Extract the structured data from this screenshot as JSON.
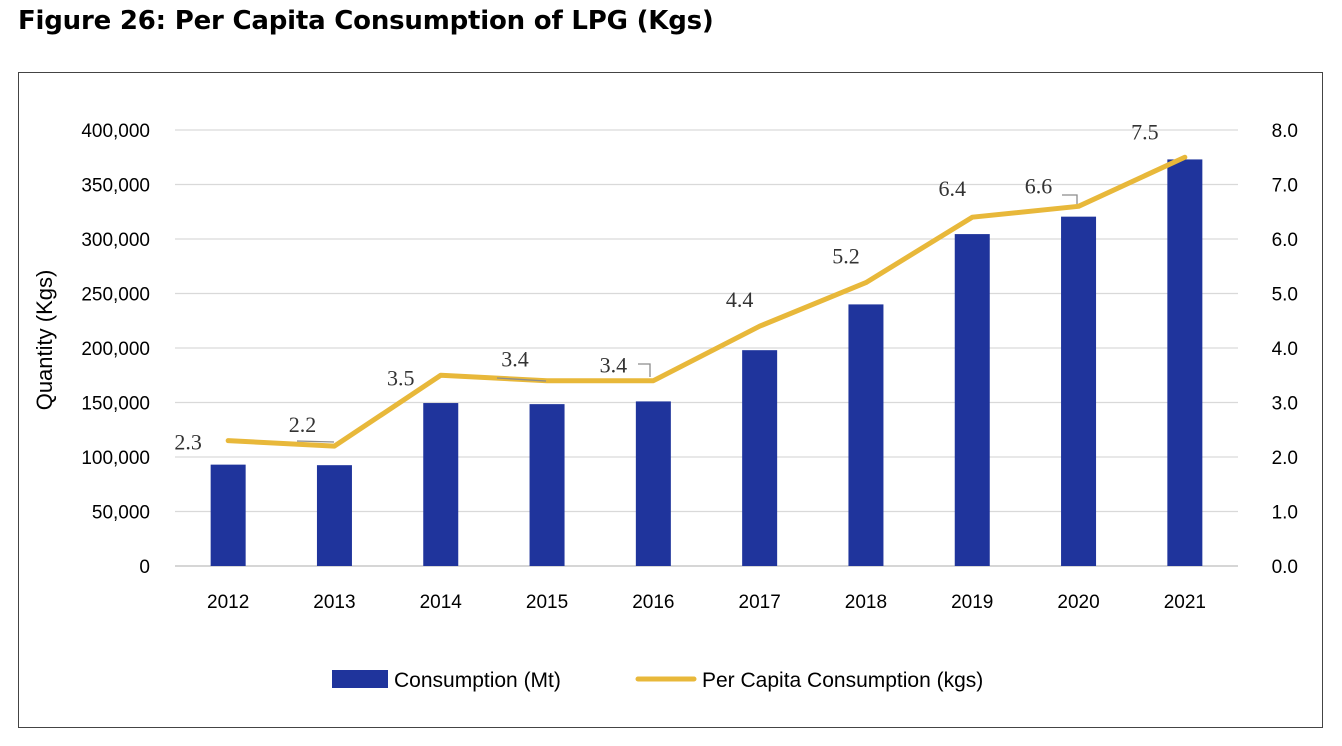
{
  "figure": {
    "title": "Figure 26: Per Capita Consumption of LPG (Kgs)"
  },
  "chart_data": {
    "type": "bar+line",
    "title": "Figure 26: Per Capita Consumption of LPG (Kgs)",
    "categories": [
      "2012",
      "2013",
      "2014",
      "2015",
      "2016",
      "2017",
      "2018",
      "2019",
      "2020",
      "2021"
    ],
    "series": [
      {
        "name": "Consumption (Mt)",
        "type": "bar",
        "axis": "left",
        "color": "#1f349c",
        "values": [
          93000,
          92500,
          149500,
          148500,
          151000,
          198000,
          240000,
          304500,
          320500,
          373000
        ]
      },
      {
        "name": "Per Capita Consumption (kgs)",
        "type": "line",
        "axis": "right",
        "color": "#e8b83a",
        "values": [
          2.3,
          2.2,
          3.5,
          3.4,
          3.4,
          4.4,
          5.2,
          6.4,
          6.6,
          7.5
        ],
        "labels": [
          "2.3",
          "2.2",
          "3.5",
          "3.4",
          "3.4",
          "4.4",
          "5.2",
          "6.4",
          "6.6",
          "7.5"
        ]
      }
    ],
    "ylabel": "Quantity (Kgs)",
    "ylim": [
      0,
      400000
    ],
    "yticks": [
      0,
      50000,
      100000,
      150000,
      200000,
      250000,
      300000,
      350000,
      400000
    ],
    "ytick_labels": [
      "0",
      "50,000",
      "100,000",
      "150,000",
      "200,000",
      "250,000",
      "300,000",
      "350,000",
      "400,000"
    ],
    "y2lim": [
      0,
      8
    ],
    "y2ticks": [
      0,
      1,
      2,
      3,
      4,
      5,
      6,
      7,
      8
    ],
    "y2tick_labels": [
      "0.0",
      "1.0",
      "2.0",
      "3.0",
      "4.0",
      "5.0",
      "6.0",
      "7.0",
      "8.0"
    ],
    "grid": true,
    "legend_position": "bottom"
  }
}
